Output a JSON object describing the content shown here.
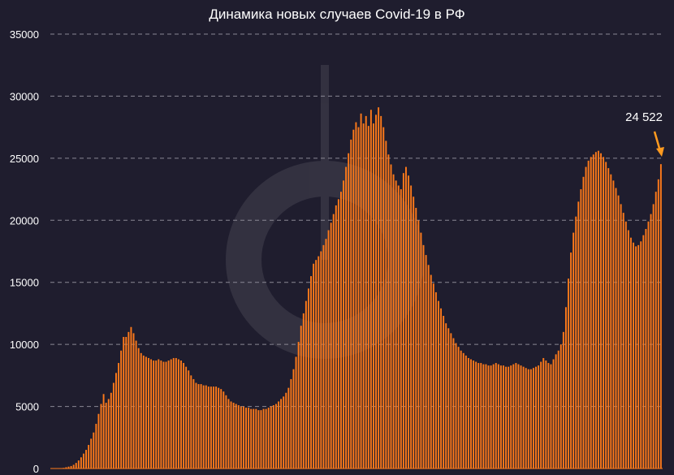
{
  "chart_data": {
    "type": "bar",
    "title": "Динамика новых случаев Covid-19 в РФ",
    "xlabel": "",
    "ylabel": "",
    "ylim": [
      0,
      35000
    ],
    "yticks": [
      0,
      5000,
      10000,
      15000,
      20000,
      25000,
      30000,
      35000
    ],
    "grid": true,
    "legend": "none",
    "colors": {
      "bar": "#ff7a1a",
      "background": "#1f1d2e",
      "grid": "#8a8894",
      "text": "#ffffff",
      "arrow": "#ff9a1f"
    },
    "annotation": {
      "text": "24 522",
      "target_value": 24522
    },
    "values": [
      0,
      0,
      0,
      0,
      0,
      50,
      100,
      150,
      200,
      300,
      450,
      650,
      900,
      1200,
      1500,
      1900,
      2400,
      2900,
      3600,
      4400,
      5200,
      6000,
      5300,
      5600,
      6100,
      6900,
      7700,
      8500,
      9500,
      10600,
      10600,
      11000,
      11400,
      10900,
      10300,
      9700,
      9300,
      9100,
      9000,
      8900,
      8800,
      8700,
      8700,
      8800,
      8700,
      8600,
      8600,
      8700,
      8800,
      8900,
      8900,
      8800,
      8700,
      8500,
      8200,
      7900,
      7500,
      7200,
      6900,
      6800,
      6800,
      6700,
      6700,
      6600,
      6600,
      6600,
      6600,
      6500,
      6400,
      6200,
      5900,
      5600,
      5400,
      5300,
      5200,
      5100,
      5000,
      5000,
      4900,
      4900,
      4800,
      4800,
      4800,
      4700,
      4700,
      4800,
      4800,
      4900,
      5000,
      5100,
      5200,
      5400,
      5600,
      5800,
      6100,
      6500,
      7200,
      8000,
      9000,
      10200,
      11500,
      12500,
      13500,
      14500,
      15500,
      16500,
      16800,
      17100,
      17500,
      18000,
      18500,
      19200,
      19800,
      20500,
      21200,
      21700,
      22300,
      23200,
      24300,
      25400,
      26500,
      27300,
      27900,
      27500,
      28600,
      27800,
      28400,
      27600,
      28900,
      27800,
      28500,
      29100,
      28400,
      27500,
      26400,
      25300,
      24500,
      23700,
      23200,
      22800,
      22500,
      23800,
      24300,
      23600,
      22800,
      21900,
      21000,
      20000,
      19000,
      18000,
      17200,
      16400,
      15600,
      14900,
      14200,
      13500,
      12900,
      12300,
      11700,
      11300,
      10900,
      10500,
      10100,
      9800,
      9500,
      9300,
      9100,
      8900,
      8800,
      8700,
      8600,
      8500,
      8500,
      8400,
      8400,
      8300,
      8300,
      8400,
      8500,
      8400,
      8300,
      8300,
      8200,
      8200,
      8300,
      8400,
      8500,
      8400,
      8300,
      8200,
      8100,
      8000,
      8000,
      8100,
      8200,
      8300,
      8600,
      8900,
      8700,
      8500,
      8400,
      8800,
      9200,
      9500,
      10000,
      11000,
      13000,
      15300,
      17400,
      19000,
      20300,
      21500,
      22500,
      23500,
      24300,
      24800,
      25100,
      25300,
      25500,
      25600,
      25400,
      25100,
      24700,
      24200,
      23700,
      23200,
      22600,
      22000,
      21300,
      20600,
      19900,
      19200,
      18600,
      18200,
      17900,
      18000,
      18300,
      18800,
      19300,
      19900,
      20500,
      21300,
      22300,
      23300,
      24522
    ]
  }
}
